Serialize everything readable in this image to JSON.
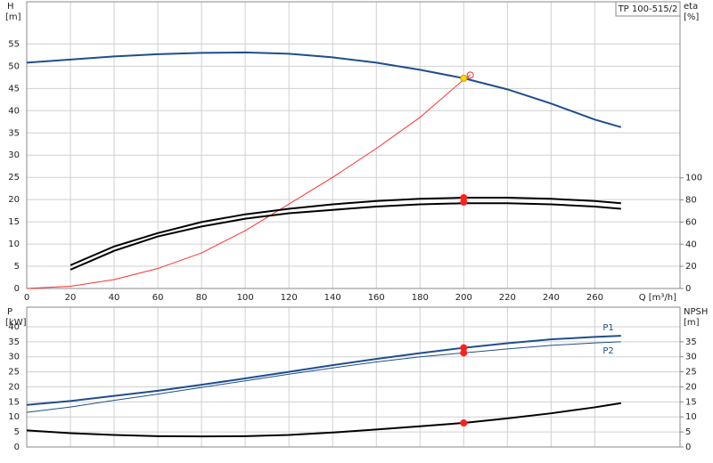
{
  "chart_data": [
    {
      "type": "line",
      "label": "TP 100-515/2",
      "y_label": "H",
      "y_unit": "[m]",
      "y2_label": "eta",
      "y2_unit": "[%]",
      "x_label": "Q [m³/h]",
      "xlim": [
        0,
        299
      ],
      "xticks": [
        0,
        20,
        40,
        60,
        80,
        100,
        120,
        140,
        160,
        180,
        200,
        220,
        240,
        260
      ],
      "ylim": [
        0,
        64.5
      ],
      "yticks": [
        0,
        5,
        10,
        15,
        20,
        25,
        30,
        35,
        40,
        45,
        50,
        55
      ],
      "y2lim": [
        0,
        259
      ],
      "y2ticks": [
        0,
        20,
        40,
        60,
        80,
        100
      ],
      "grid": true,
      "series": [
        {
          "color": "#1f4e8c",
          "weight": "thick",
          "x": [
            0,
            20,
            40,
            60,
            80,
            100,
            120,
            140,
            160,
            180,
            200,
            220,
            240,
            260,
            272
          ],
          "values": [
            50.8,
            51.5,
            52.2,
            52.7,
            53,
            53.1,
            52.8,
            52,
            50.8,
            49.2,
            47.3,
            44.8,
            41.6,
            38,
            36.3
          ]
        },
        {
          "color": "#ff3030",
          "weight": "thin",
          "x": [
            0,
            20,
            40,
            60,
            80,
            100,
            120,
            140,
            160,
            180,
            200,
            203
          ],
          "values": [
            0,
            0.5,
            2,
            4.5,
            8,
            13,
            19,
            25,
            31.5,
            38.5,
            47,
            48
          ]
        },
        {
          "color": "#000000",
          "weight": "thick",
          "axis": "y2",
          "x": [
            20,
            40,
            60,
            80,
            100,
            120,
            140,
            160,
            180,
            200,
            220,
            240,
            260,
            272
          ],
          "values": [
            21,
            38,
            50,
            60,
            67,
            72,
            76,
            79,
            81,
            82,
            82,
            81,
            79,
            77
          ]
        },
        {
          "color": "#000000",
          "weight": "thick",
          "axis": "y2",
          "x": [
            20,
            40,
            60,
            80,
            100,
            120,
            140,
            160,
            180,
            200,
            220,
            240,
            260,
            272
          ],
          "values": [
            17,
            34,
            47,
            56,
            63,
            68,
            71,
            74,
            76,
            77,
            77,
            76,
            74,
            72
          ]
        }
      ],
      "points": [
        {
          "x": 203,
          "y": 48,
          "color": "#ff3030",
          "marker": "open"
        },
        {
          "x": 200,
          "y": 47.3,
          "color": "#ffd700"
        },
        {
          "x": 200,
          "y": 82,
          "color": "#ff2020",
          "axis": "y2"
        },
        {
          "x": 200,
          "y": 78,
          "color": "#ff2020",
          "axis": "y2"
        }
      ]
    },
    {
      "type": "line",
      "y_label": "P",
      "y_unit": "[kW]",
      "y2_label": "NPSH",
      "y2_unit": "[m]",
      "ylim": [
        0,
        46.5
      ],
      "yticks": [
        0,
        5,
        10,
        15,
        20,
        25,
        30,
        35,
        40
      ],
      "y2lim": [
        0,
        46.5
      ],
      "y2ticks": [
        0,
        5,
        10,
        15,
        20,
        25,
        30,
        35
      ],
      "grid": true,
      "series": [
        {
          "name": "P1",
          "color": "#1f4e8c",
          "weight": "thick",
          "x": [
            0,
            20,
            40,
            60,
            80,
            100,
            120,
            140,
            160,
            180,
            200,
            220,
            240,
            260,
            272
          ],
          "values": [
            14,
            15.3,
            17,
            18.7,
            20.7,
            22.8,
            25,
            27.2,
            29.3,
            31.2,
            33,
            34.5,
            35.8,
            36.6,
            37
          ]
        },
        {
          "name": "P2",
          "color": "#1f4e8c",
          "weight": "thin",
          "x": [
            0,
            20,
            40,
            60,
            80,
            100,
            120,
            140,
            160,
            180,
            200,
            220,
            240,
            260,
            272
          ],
          "values": [
            11.5,
            13.3,
            15.5,
            17.6,
            19.8,
            22,
            24.2,
            26.3,
            28.3,
            30,
            31.3,
            32.6,
            33.8,
            34.6,
            35
          ]
        },
        {
          "color": "#000000",
          "weight": "thick",
          "axis": "y2",
          "x": [
            0,
            20,
            40,
            60,
            80,
            100,
            120,
            140,
            160,
            180,
            200,
            220,
            240,
            260,
            272
          ],
          "values": [
            5.5,
            4.6,
            4,
            3.6,
            3.5,
            3.6,
            4,
            4.8,
            5.8,
            6.9,
            8,
            9.5,
            11.2,
            13.2,
            14.6
          ]
        }
      ],
      "points": [
        {
          "x": 200,
          "y": 33,
          "color": "#ff2020"
        },
        {
          "x": 200,
          "y": 31.3,
          "color": "#ff2020"
        },
        {
          "x": 200,
          "y": 8,
          "color": "#ff2020",
          "axis": "y2"
        }
      ]
    }
  ]
}
